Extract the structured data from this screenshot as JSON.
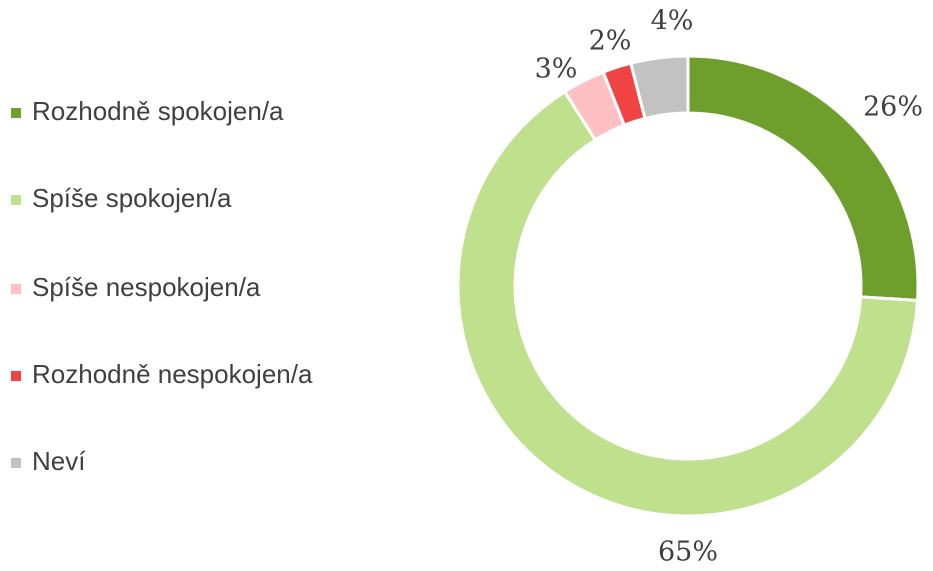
{
  "chart_data": {
    "type": "donut",
    "categories": [
      "Rozhodně spokojen/a",
      "Spíše spokojen/a",
      "Spíše nespokojen/a",
      "Rozhodně nespokojen/a",
      "Neví"
    ],
    "values": [
      26,
      65,
      3,
      2,
      4
    ],
    "value_labels": [
      "26%",
      "65%",
      "3%",
      "2%",
      "4%"
    ],
    "colors": [
      "#6e9e2c",
      "#bfe08c",
      "#ffc0c4",
      "#f04343",
      "#c2c2c2"
    ],
    "legend": "left"
  }
}
